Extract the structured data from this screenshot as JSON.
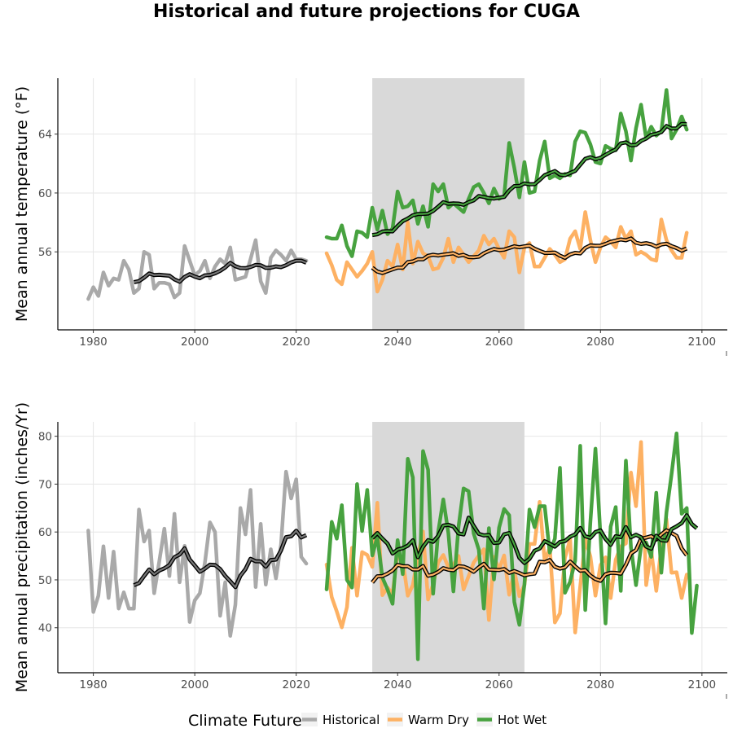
{
  "chart_data": {
    "type": "line",
    "title": "Historical and future projections for CUGA",
    "colors": {
      "Historical": "#a9a9a9",
      "Warm Dry": "#fdb163",
      "Hot Wet": "#47a23f",
      "smooth_outline": "#000000",
      "shade": "#d9d9d9"
    },
    "legend": {
      "title": "Climate Future",
      "position": "bottom",
      "entries": [
        "Historical",
        "Warm Dry",
        "Hot Wet"
      ]
    },
    "shaded_period": [
      2035,
      2065
    ],
    "panels": [
      {
        "ylabel": "Mean annual temperature (°F)",
        "xlim": [
          1973,
          2105
        ],
        "ylim": [
          50.7,
          67.8
        ],
        "xticks": [
          1980,
          2000,
          2020,
          2040,
          2060,
          2080,
          2100
        ],
        "yticks": [
          56,
          60,
          64
        ],
        "series": [
          {
            "name": "Historical",
            "x_start": 1979,
            "values": [
              52.8,
              53.6,
              53.0,
              54.6,
              53.7,
              54.2,
              54.1,
              55.4,
              54.8,
              53.2,
              53.5,
              56.0,
              55.8,
              53.5,
              53.9,
              53.9,
              53.8,
              52.9,
              53.2,
              56.4,
              55.4,
              54.4,
              54.7,
              55.4,
              54.2,
              55.0,
              55.5,
              55.2,
              56.3,
              54.1,
              54.2,
              54.3,
              55.5,
              56.8,
              54.0,
              53.2,
              55.6,
              56.1,
              55.8,
              55.4,
              56.1,
              55.5,
              55.5,
              55.4
            ]
          },
          {
            "name": "Warm Dry",
            "x_start": 2026,
            "values": [
              55.9,
              55.1,
              54.1,
              53.8,
              55.3,
              54.8,
              54.3,
              54.7,
              55.2,
              56.0,
              53.3,
              54.1,
              55.4,
              55.0,
              56.5,
              54.8,
              58.0,
              55.2,
              56.7,
              55.9,
              55.7,
              54.8,
              54.9,
              55.6,
              56.9,
              55.3,
              56.3,
              55.8,
              55.3,
              55.7,
              56.1,
              57.1,
              56.5,
              56.9,
              56.2,
              55.6,
              57.4,
              57.0,
              54.6,
              56.3,
              56.6,
              55.0,
              55.0,
              55.6,
              56.2,
              55.8,
              55.3,
              55.5,
              56.9,
              57.4,
              56.2,
              58.7,
              56.8,
              55.3,
              56.3,
              57.0,
              56.7,
              56.3,
              57.7,
              56.9,
              57.4,
              55.8,
              56.0,
              55.8,
              55.5,
              55.4,
              58.2,
              56.8,
              56.1,
              55.6,
              55.6,
              57.3
            ]
          },
          {
            "name": "Hot Wet",
            "x_start": 2026,
            "values": [
              57.0,
              56.9,
              56.9,
              57.8,
              56.4,
              55.7,
              57.4,
              57.3,
              57.0,
              59.0,
              57.5,
              58.8,
              57.2,
              57.6,
              60.1,
              59.0,
              59.1,
              59.5,
              57.9,
              59.1,
              57.7,
              60.6,
              60.1,
              60.6,
              59.0,
              59.3,
              59.0,
              58.7,
              59.6,
              60.4,
              60.6,
              60.0,
              59.3,
              60.3,
              59.6,
              59.8,
              63.4,
              61.7,
              59.7,
              62.1,
              60.0,
              60.1,
              62.2,
              63.5,
              61.0,
              61.2,
              61.0,
              61.3,
              61.2,
              63.5,
              64.2,
              64.1,
              63.3,
              62.1,
              62.0,
              63.2,
              63.0,
              62.9,
              65.4,
              64.2,
              62.2,
              64.4,
              66.0,
              63.7,
              64.5,
              63.9,
              64.2,
              67.0,
              63.7,
              64.3,
              65.2,
              64.3
            ]
          }
        ]
      },
      {
        "ylabel": "Mean annual precipitation (inches/Yr)",
        "xlim": [
          1973,
          2105
        ],
        "ylim": [
          30.6,
          83.0
        ],
        "xticks": [
          1980,
          2000,
          2020,
          2040,
          2060,
          2080,
          2100
        ],
        "yticks": [
          40,
          50,
          60,
          70,
          80
        ],
        "series": [
          {
            "name": "Historical",
            "x_start": 1979,
            "values": [
              60.3,
              43.3,
              46.7,
              57.0,
              46.2,
              55.9,
              44.0,
              47.4,
              44.0,
              44.0,
              64.7,
              58.0,
              60.3,
              47.2,
              53.8,
              60.7,
              50.8,
              63.8,
              49.5,
              57.1,
              41.2,
              45.7,
              47.2,
              53.6,
              62.0,
              60.0,
              42.5,
              49.5,
              38.3,
              44.8,
              65.0,
              59.5,
              68.8,
              48.5,
              61.7,
              49.0,
              56.4,
              50.3,
              57.3,
              72.6,
              67.0,
              71.0,
              54.8,
              53.4
            ]
          },
          {
            "name": "Warm Dry",
            "x_start": 2026,
            "values": [
              53.2,
              46.4,
              43.4,
              40.1,
              44.3,
              56.7,
              46.7,
              55.8,
              55.2,
              52.7,
              66.1,
              46.8,
              48.4,
              47.0,
              55.8,
              54.1,
              46.7,
              48.9,
              55.0,
              60.1,
              45.9,
              49.1,
              53.6,
              55.2,
              52.6,
              53.1,
              55.0,
              48.0,
              50.8,
              53.6,
              55.1,
              56.4,
              41.6,
              54.8,
              52.2,
              55.1,
              46.9,
              51.9,
              46.6,
              48.9,
              57.5,
              57.5,
              66.3,
              53.8,
              56.8,
              41.1,
              43.0,
              54.6,
              58.5,
              39.0,
              48.6,
              58.5,
              54.9,
              46.7,
              53.1,
              54.7,
              46.2,
              54.2,
              57.0,
              57.6,
              72.4,
              65.4,
              78.8,
              48.9,
              56.1,
              47.7,
              56.8,
              62.7,
              51.5,
              51.6,
              46.2,
              51.1
            ]
          },
          {
            "name": "Hot Wet",
            "x_start": 2026,
            "values": [
              48.0,
              62.1,
              58.6,
              65.6,
              50.0,
              48.4,
              70.0,
              60.2,
              68.8,
              55.1,
              59.0,
              50.5,
              48.0,
              45.0,
              58.3,
              51.2,
              75.3,
              71.4,
              33.4,
              76.9,
              73.0,
              47.1,
              60.0,
              66.8,
              59.8,
              47.6,
              61.1,
              69.1,
              68.5,
              59.7,
              56.3,
              44.0,
              60.8,
              50.1,
              60.9,
              64.8,
              63.5,
              45.4,
              40.6,
              49.0,
              64.7,
              61.0,
              65.4,
              65.4,
              55.7,
              58.6,
              73.4,
              47.3,
              49.6,
              54.0,
              78.0,
              43.7,
              62.1,
              77.4,
              59.2,
              40.9,
              61.1,
              65.2,
              47.7,
              74.9,
              56.8,
              48.9,
              57.0,
              57.8,
              54.8,
              68.2,
              51.5,
              64.1,
              72.0,
              80.6,
              63.8,
              65.0,
              38.9,
              48.8
            ]
          }
        ]
      }
    ]
  }
}
